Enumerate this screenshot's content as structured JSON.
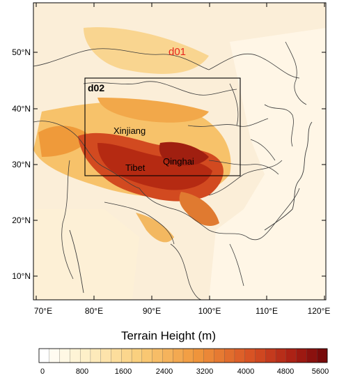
{
  "map": {
    "domain_outer_label": "d01",
    "domain_inner_label": "d02",
    "region_labels": [
      "Xinjiang",
      "Qinghai",
      "Tibet"
    ],
    "lat_labels": [
      "50°N",
      "40°N",
      "30°N",
      "20°N",
      "10°N"
    ],
    "lon_labels": [
      "70°E",
      "80°E",
      "90°E",
      "100°E",
      "110°E",
      "120°E"
    ],
    "colors": {
      "d01_label": "#e8261c",
      "low": "#fffbf0",
      "mid": "#f5b040",
      "high": "#7a0a0a"
    }
  },
  "colorbar": {
    "title": "Terrain Height (m)",
    "ticks": [
      "0",
      "800",
      "1600",
      "2400",
      "3200",
      "4000",
      "4800",
      "5600"
    ],
    "range": [
      0,
      5600
    ]
  }
}
